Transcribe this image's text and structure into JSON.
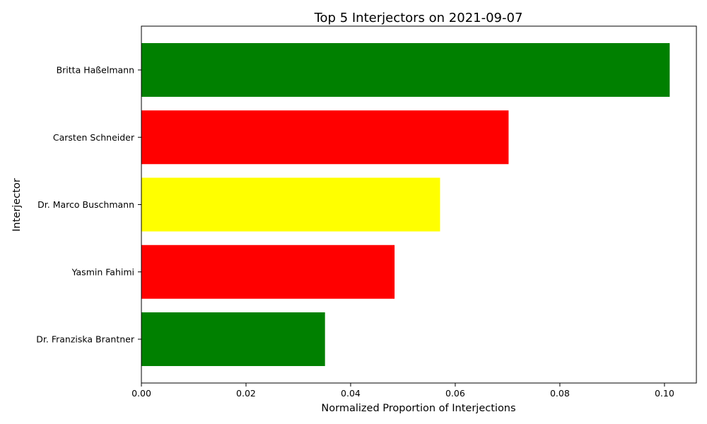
{
  "chart_data": {
    "type": "bar",
    "orientation": "horizontal",
    "title": "Top 5 Interjectors on 2021-09-07",
    "xlabel": "Normalized Proportion of Interjections",
    "ylabel": "Interjector",
    "categories": [
      "Britta Haßelmann",
      "Carsten Schneider",
      "Dr. Marco Buschmann",
      "Yasmin Fahimi",
      "Dr. Franziska Brantner"
    ],
    "values": [
      0.101,
      0.0702,
      0.0571,
      0.0484,
      0.0351
    ],
    "colors": [
      "#008000",
      "#ff0000",
      "#ffff00",
      "#ff0000",
      "#008000"
    ],
    "xlim": [
      0,
      0.1061
    ],
    "xticks": [
      0.0,
      0.02,
      0.04,
      0.06,
      0.08,
      0.1
    ],
    "xtick_labels": [
      "0.00",
      "0.02",
      "0.04",
      "0.06",
      "0.08",
      "0.10"
    ],
    "grid": false,
    "legend": "none"
  }
}
